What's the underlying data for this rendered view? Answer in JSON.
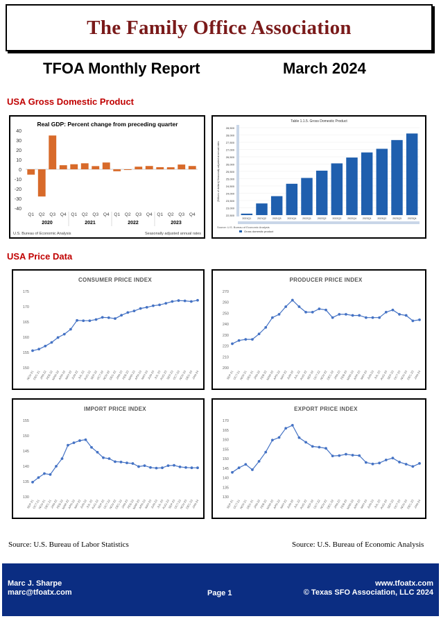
{
  "header": {
    "org_name": "The Family Office Association",
    "report_name": "TFOA Monthly Report",
    "report_date": "March 2024"
  },
  "sections": {
    "gdp": "USA Gross Domestic Product",
    "price": "USA Price Data"
  },
  "sources": {
    "left": "Source: U.S. Bureau of Labor Statistics",
    "right": "Source: U.S. Bureau of Economic Analysis"
  },
  "footer": {
    "name": "Marc J. Sharpe",
    "email": "marc@tfoatx.com",
    "page": "Page 1",
    "website": "www.tfoatx.com",
    "copyright": "© Texas SFO Association, LLC 2024"
  },
  "colors": {
    "title": "#7a1a1a",
    "section": "#c00000",
    "bar_orange": "#d86a2a",
    "bar_blue": "#1f5fae",
    "line_blue": "#4472c4",
    "footer_bg": "#0b2d82"
  },
  "chart_data": [
    {
      "id": "gdp_pct",
      "type": "bar",
      "title": "Real GDP:  Percent change from preceding quarter",
      "categories": [
        "Q1",
        "Q2",
        "Q3",
        "Q4",
        "Q1",
        "Q2",
        "Q3",
        "Q4",
        "Q1",
        "Q2",
        "Q3",
        "Q4",
        "Q1",
        "Q2",
        "Q3",
        "Q4"
      ],
      "groups": [
        "2020",
        "2021",
        "2022",
        "2023"
      ],
      "values": [
        -5.5,
        -28.0,
        34.8,
        4.2,
        5.2,
        6.2,
        3.3,
        7.0,
        -2.0,
        -0.6,
        2.7,
        3.4,
        2.2,
        2.1,
        4.9,
        3.4
      ],
      "ylim": [
        -40,
        40
      ],
      "yticks": [
        40,
        30,
        20,
        10,
        0,
        -10,
        -20,
        -30,
        -40
      ],
      "note_left": "U.S. Bureau of Economic Analysis",
      "note_right": "Seasonally adjusted annual rates"
    },
    {
      "id": "gdp_level",
      "type": "bar",
      "title": "Table 1.1.5. Gross Domestic Product",
      "ylabel": "[Billions of dollars] Seasonally adjusted at annual rates",
      "categories": [
        "2021Q1",
        "2021Q2",
        "2021Q3",
        "2021Q4",
        "2022Q1",
        "2022Q2",
        "2022Q3",
        "2022Q4",
        "2023Q1",
        "2023Q2",
        "2023Q3",
        "2023Q4"
      ],
      "values": [
        22600,
        23300,
        23800,
        24650,
        25050,
        25550,
        26050,
        26450,
        26800,
        27050,
        27650,
        28100
      ],
      "ylim": [
        22500,
        28500
      ],
      "yticks": [
        "28,500",
        "28,000",
        "27,500",
        "27,000",
        "26,500",
        "26,000",
        "25,500",
        "25,000",
        "24,500",
        "24,000",
        "23,500",
        "23,000",
        "22,500"
      ],
      "legend": "Gross domestic product",
      "source": "Source: U.S. Bureau of Economic Analysis"
    },
    {
      "id": "cpi",
      "type": "line",
      "title": "CONSUMER PRICE INDEX",
      "x": [
        "NOV-21",
        "DEC-21",
        "JAN-22",
        "FEB-22",
        "MAR-22",
        "APR-22",
        "MAY-22",
        "JUN-22",
        "JUL-22",
        "AUG-22",
        "SEP-22",
        "OCT-22",
        "NOV-22",
        "DEC-22",
        "JAN-23",
        "FEB-23",
        "MAR-23",
        "APR-23",
        "MAY-23",
        "JUN-23",
        "JUL-23",
        "AUG-23",
        "SEP-23",
        "OCT-23",
        "NOV-23",
        "DEC-23",
        "JAN-24"
      ],
      "values": [
        155.6,
        156.1,
        157.1,
        158.3,
        159.9,
        161.0,
        162.6,
        165.5,
        165.4,
        165.4,
        165.8,
        166.5,
        166.4,
        166.1,
        167.2,
        168.1,
        168.6,
        169.4,
        169.8,
        170.3,
        170.6,
        171.1,
        171.7,
        172.0,
        171.9,
        171.7,
        172.1
      ],
      "ylim": [
        150,
        175
      ],
      "yticks": [
        "175",
        "170",
        "165",
        "160",
        "155",
        "150"
      ]
    },
    {
      "id": "ppi",
      "type": "line",
      "title": "PRODUCER PRICE INDEX",
      "x": [
        "SEP-21",
        "OCT-21",
        "NOV-21",
        "DEC-21",
        "JAN-22",
        "FEB-22",
        "MAR-22",
        "APR-22",
        "MAY-22",
        "JUN-22",
        "JUL-22",
        "AUG-22",
        "SEP-22",
        "OCT-22",
        "NOV-22",
        "DEC-22",
        "JAN-23",
        "FEB-23",
        "MAR-23",
        "APR-23",
        "MAY-23",
        "JUN-23",
        "JUL-23",
        "AUG-23",
        "SEP-23",
        "OCT-23",
        "NOV-23",
        "DEC-23",
        "JAN-24"
      ],
      "values": [
        222,
        225,
        226,
        226,
        231,
        237,
        246,
        249,
        256,
        262,
        256,
        251,
        251,
        254,
        253,
        246,
        249,
        249,
        248,
        248,
        246,
        246,
        246,
        251,
        253,
        249,
        248,
        243,
        244
      ],
      "ylim": [
        200,
        270
      ],
      "yticks": [
        "270",
        "260",
        "250",
        "240",
        "230",
        "220",
        "210",
        "200"
      ]
    },
    {
      "id": "import",
      "type": "line",
      "title": "IMPORT PRICE INDEX",
      "x": [
        "SEP-21",
        "OCT-21",
        "NOV-21",
        "DEC-21",
        "JAN-22",
        "FEB-22",
        "MAR-22",
        "APR-22",
        "MAY-22",
        "JUN-22",
        "JUL-22",
        "AUG-22",
        "SEP-22",
        "OCT-22",
        "NOV-22",
        "DEC-22",
        "JAN-23",
        "FEB-23",
        "MAR-23",
        "APR-23",
        "MAY-23",
        "JUN-23",
        "JUL-23",
        "AUG-23",
        "SEP-23",
        "OCT-23",
        "NOV-23",
        "DEC-23",
        "JAN-24"
      ],
      "values": [
        134.8,
        136.3,
        137.6,
        137.3,
        140.0,
        142.5,
        146.9,
        147.7,
        148.4,
        148.7,
        146.2,
        144.6,
        142.8,
        142.5,
        141.5,
        141.4,
        141.1,
        140.9,
        139.9,
        140.2,
        139.6,
        139.4,
        139.5,
        140.2,
        140.3,
        139.8,
        139.6,
        139.5,
        139.5
      ],
      "ylim": [
        130,
        155
      ],
      "yticks": [
        "155",
        "150",
        "145",
        "140",
        "135",
        "130"
      ]
    },
    {
      "id": "export",
      "type": "line",
      "title": "EXPORT PRICE INDEX",
      "x": [
        "SEP-21",
        "OCT-21",
        "NOV-21",
        "DEC-21",
        "JAN-22",
        "FEB-22",
        "MAR-22",
        "APR-22",
        "MAY-22",
        "JUN-22",
        "JUL-22",
        "AUG-22",
        "SEP-22",
        "OCT-22",
        "NOV-22",
        "DEC-22",
        "JAN-23",
        "FEB-23",
        "MAR-23",
        "APR-23",
        "MAY-23",
        "JUN-23",
        "JUL-23",
        "AUG-23",
        "SEP-23",
        "OCT-23",
        "NOV-23",
        "DEC-23",
        "JAN-24"
      ],
      "values": [
        142.8,
        145.2,
        147.0,
        144.2,
        148.6,
        153.4,
        159.7,
        161.1,
        165.9,
        167.5,
        161.0,
        158.6,
        156.4,
        156.0,
        155.4,
        151.4,
        151.6,
        152.3,
        151.8,
        151.6,
        148.0,
        147.2,
        147.7,
        149.3,
        150.3,
        148.2,
        147.1,
        145.9,
        147.5
      ],
      "ylim": [
        130,
        170
      ],
      "yticks": [
        "170",
        "165",
        "160",
        "155",
        "150",
        "145",
        "140",
        "135",
        "130"
      ]
    }
  ]
}
